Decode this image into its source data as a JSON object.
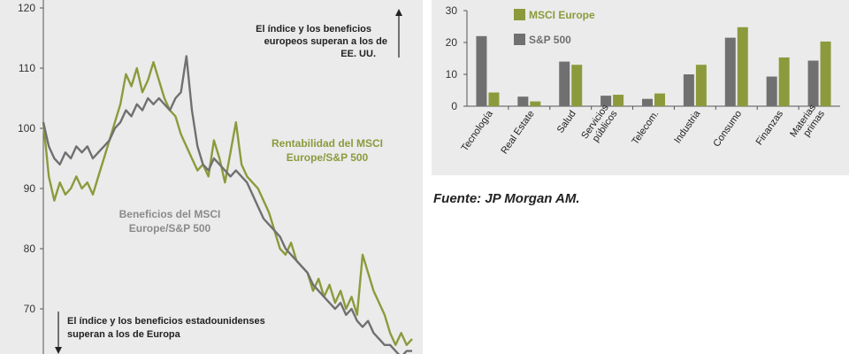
{
  "chart_data": [
    {
      "type": "line",
      "ylim": [
        60,
        120
      ],
      "yticks": [
        70,
        80,
        90,
        100,
        110,
        120
      ],
      "grid": false,
      "colors": {
        "returns": "#8c9a3c",
        "earnings": "#707070"
      },
      "series": [
        {
          "name": "Rentabilidad del MSCI Europe/S&P 500",
          "key": "returns",
          "values": [
            101,
            92,
            88,
            91,
            89,
            90,
            92,
            90,
            91,
            89,
            92,
            95,
            98,
            101,
            104,
            109,
            107,
            110,
            106,
            108,
            111,
            108,
            105,
            103,
            102,
            99,
            97,
            95,
            93,
            94,
            92,
            98,
            95,
            91,
            96,
            101,
            94,
            92,
            91,
            90,
            88,
            86,
            83,
            80,
            79,
            81,
            78,
            77,
            76,
            73,
            75,
            72,
            74,
            71,
            73,
            70,
            72,
            69,
            79,
            76,
            73,
            71,
            69,
            66,
            64,
            66,
            64,
            65
          ]
        },
        {
          "name": "Beneficios del MSCI Europe/S&P 500",
          "key": "earnings",
          "values": [
            101,
            97,
            95,
            94,
            96,
            95,
            97,
            96,
            97,
            95,
            96,
            97,
            98,
            100,
            101,
            103,
            102,
            104,
            103,
            105,
            104,
            105,
            104,
            103,
            105,
            106,
            112,
            103,
            97,
            94,
            93,
            95,
            94,
            93,
            92,
            93,
            92,
            91,
            89,
            87,
            85,
            84,
            83,
            82,
            80,
            79,
            78,
            77,
            76,
            74,
            73,
            72,
            71,
            70,
            71,
            69,
            70,
            68,
            67,
            68,
            66,
            65,
            64,
            64,
            63,
            62,
            63,
            63
          ]
        }
      ],
      "annotations": {
        "top_note": [
          "El índice y los beneficios",
          "europeos superan a los  de",
          "EE. UU."
        ],
        "bottom_note": [
          "El índice y los beneficios estadounidenses",
          "superan a los de Europa"
        ],
        "returns_label": [
          "Rentabilidad del MSCI",
          "Europe/S&P 500"
        ],
        "earnings_label": [
          "Beneficios del MSCI",
          "Europe/S&P 500"
        ]
      }
    },
    {
      "type": "bar",
      "ylim": [
        0,
        30
      ],
      "yticks": [
        0,
        10,
        20,
        30
      ],
      "legend_position": "top-left",
      "colors": {
        "msci": "#8c9a3c",
        "sp": "#707070"
      },
      "categories": [
        "Tecnología",
        "Real Estate",
        "Salud",
        "Servicios públicos",
        "Telecom.",
        "Industria",
        "Consumo",
        "Finanzas",
        "Materias primas"
      ],
      "category_lines": [
        [
          "Tecnología"
        ],
        [
          "Real Estate"
        ],
        [
          "Salud"
        ],
        [
          "Servicios",
          "públicos"
        ],
        [
          "Telecom."
        ],
        [
          "Industria"
        ],
        [
          "Consumo"
        ],
        [
          "Finanzas"
        ],
        [
          "Materias",
          "primas"
        ]
      ],
      "series": [
        {
          "name": "S&P 500",
          "key": "sp",
          "values": [
            22,
            3,
            14,
            3.3,
            2.3,
            10,
            21.5,
            9.3,
            14.3
          ]
        },
        {
          "name": "MSCI Europe",
          "key": "msci",
          "values": [
            4.3,
            1.5,
            13,
            3.6,
            4,
            13,
            24.8,
            15.3,
            20.3
          ]
        }
      ],
      "legend": [
        {
          "label": "MSCI Europe",
          "key": "msci"
        },
        {
          "label": "S&P 500",
          "key": "sp"
        }
      ]
    }
  ],
  "source": "Fuente: JP Morgan AM."
}
